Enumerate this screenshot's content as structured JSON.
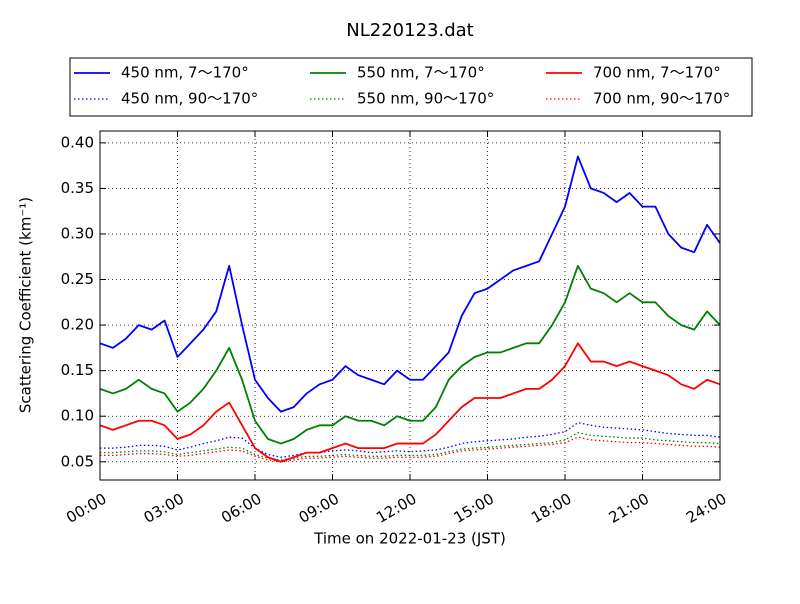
{
  "chart_data": {
    "type": "line",
    "title": "NL220123.dat",
    "x_label": "Time on 2022-01-23 (JST)",
    "y_label": "Scattering Coefficient (km⁻¹)",
    "x": [
      0,
      0.5,
      1,
      1.5,
      2,
      2.5,
      3,
      3.5,
      4,
      4.5,
      5,
      5.5,
      6,
      6.5,
      7,
      7.5,
      8,
      8.5,
      9,
      9.5,
      10,
      10.5,
      11,
      11.5,
      12,
      12.5,
      13,
      13.5,
      14,
      14.5,
      15,
      15.5,
      16,
      16.5,
      17,
      17.5,
      18,
      18.5,
      19,
      19.5,
      20,
      20.5,
      21,
      21.5,
      22,
      22.5,
      23,
      23.5,
      24
    ],
    "xlim": [
      0,
      24
    ],
    "xticks": [
      {
        "value": 0,
        "label": "00:00"
      },
      {
        "value": 3,
        "label": "03:00"
      },
      {
        "value": 6,
        "label": "06:00"
      },
      {
        "value": 9,
        "label": "09:00"
      },
      {
        "value": 12,
        "label": "12:00"
      },
      {
        "value": 15,
        "label": "15:00"
      },
      {
        "value": 18,
        "label": "18:00"
      },
      {
        "value": 21,
        "label": "21:00"
      },
      {
        "value": 24,
        "label": "24:00"
      }
    ],
    "ylim": [
      0.03,
      0.413
    ],
    "yticks": [
      0.05,
      {
        "value": 0.1,
        "label": "0.10"
      },
      0.15,
      {
        "value": 0.2,
        "label": "0.20"
      },
      0.25,
      {
        "value": 0.3,
        "label": "0.30"
      },
      0.35,
      {
        "value": 0.4,
        "label": "0.40"
      }
    ],
    "grid": true,
    "legend": "top",
    "series": [
      {
        "name": "450 nm, 7～170°",
        "color": "#0000ff",
        "linestyle": "solid",
        "values": [
          0.18,
          0.175,
          0.185,
          0.2,
          0.195,
          0.205,
          0.165,
          0.18,
          0.195,
          0.215,
          0.265,
          0.2,
          0.14,
          0.12,
          0.105,
          0.11,
          0.125,
          0.135,
          0.14,
          0.155,
          0.145,
          0.14,
          0.135,
          0.15,
          0.14,
          0.14,
          0.155,
          0.17,
          0.21,
          0.235,
          0.24,
          0.25,
          0.26,
          0.265,
          0.27,
          0.3,
          0.33,
          0.385,
          0.35,
          0.345,
          0.335,
          0.345,
          0.33,
          0.33,
          0.3,
          0.285,
          0.28,
          0.31,
          0.29
        ]
      },
      {
        "name": "450 nm, 90～170°",
        "color": "#0000ff",
        "linestyle": "dotted",
        "values": [
          0.065,
          0.065,
          0.066,
          0.068,
          0.068,
          0.067,
          0.063,
          0.066,
          0.07,
          0.073,
          0.077,
          0.076,
          0.065,
          0.058,
          0.055,
          0.057,
          0.06,
          0.06,
          0.062,
          0.063,
          0.062,
          0.06,
          0.061,
          0.062,
          0.061,
          0.062,
          0.063,
          0.066,
          0.07,
          0.072,
          0.073,
          0.074,
          0.075,
          0.077,
          0.078,
          0.08,
          0.083,
          0.093,
          0.09,
          0.088,
          0.087,
          0.086,
          0.085,
          0.083,
          0.081,
          0.08,
          0.079,
          0.079,
          0.077
        ]
      },
      {
        "name": "550 nm, 7～170°",
        "color": "#008000",
        "linestyle": "solid",
        "values": [
          0.13,
          0.125,
          0.13,
          0.14,
          0.13,
          0.125,
          0.105,
          0.115,
          0.13,
          0.15,
          0.175,
          0.14,
          0.095,
          0.075,
          0.07,
          0.075,
          0.085,
          0.09,
          0.09,
          0.1,
          0.095,
          0.095,
          0.09,
          0.1,
          0.095,
          0.095,
          0.11,
          0.14,
          0.155,
          0.165,
          0.17,
          0.17,
          0.175,
          0.18,
          0.18,
          0.2,
          0.225,
          0.265,
          0.24,
          0.235,
          0.225,
          0.235,
          0.225,
          0.225,
          0.21,
          0.2,
          0.195,
          0.215,
          0.2
        ]
      },
      {
        "name": "550 nm, 90～170°",
        "color": "#008000",
        "linestyle": "dotted",
        "values": [
          0.06,
          0.06,
          0.061,
          0.062,
          0.062,
          0.061,
          0.058,
          0.06,
          0.062,
          0.064,
          0.066,
          0.065,
          0.058,
          0.054,
          0.052,
          0.054,
          0.056,
          0.056,
          0.057,
          0.058,
          0.057,
          0.056,
          0.056,
          0.057,
          0.057,
          0.057,
          0.058,
          0.061,
          0.064,
          0.065,
          0.066,
          0.067,
          0.068,
          0.069,
          0.07,
          0.071,
          0.074,
          0.082,
          0.079,
          0.078,
          0.077,
          0.076,
          0.076,
          0.074,
          0.073,
          0.072,
          0.071,
          0.071,
          0.07
        ]
      },
      {
        "name": "700 nm, 7～170°",
        "color": "#ff0000",
        "linestyle": "solid",
        "values": [
          0.09,
          0.085,
          0.09,
          0.095,
          0.095,
          0.09,
          0.075,
          0.08,
          0.09,
          0.105,
          0.115,
          0.09,
          0.065,
          0.055,
          0.05,
          0.055,
          0.06,
          0.06,
          0.065,
          0.07,
          0.065,
          0.065,
          0.065,
          0.07,
          0.07,
          0.07,
          0.08,
          0.095,
          0.11,
          0.12,
          0.12,
          0.12,
          0.125,
          0.13,
          0.13,
          0.14,
          0.155,
          0.18,
          0.16,
          0.16,
          0.155,
          0.16,
          0.155,
          0.15,
          0.145,
          0.135,
          0.13,
          0.14,
          0.135
        ]
      },
      {
        "name": "700 nm, 90～170°",
        "color": "#ff0000",
        "linestyle": "dotted",
        "values": [
          0.057,
          0.057,
          0.058,
          0.059,
          0.059,
          0.058,
          0.056,
          0.057,
          0.059,
          0.061,
          0.063,
          0.062,
          0.056,
          0.052,
          0.05,
          0.052,
          0.054,
          0.054,
          0.055,
          0.056,
          0.055,
          0.054,
          0.054,
          0.055,
          0.055,
          0.055,
          0.056,
          0.059,
          0.062,
          0.063,
          0.064,
          0.065,
          0.066,
          0.067,
          0.068,
          0.069,
          0.071,
          0.077,
          0.074,
          0.073,
          0.072,
          0.071,
          0.071,
          0.07,
          0.069,
          0.068,
          0.067,
          0.067,
          0.066
        ]
      }
    ]
  }
}
